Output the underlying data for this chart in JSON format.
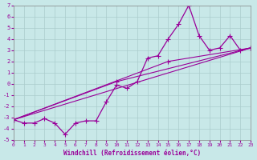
{
  "xlabel": "Windchill (Refroidissement éolien,°C)",
  "ylabel": "",
  "xlim": [
    0,
    23
  ],
  "ylim": [
    -5,
    7
  ],
  "yticks": [
    -5,
    -4,
    -3,
    -2,
    -1,
    0,
    1,
    2,
    3,
    4,
    5,
    6,
    7
  ],
  "xticks": [
    0,
    1,
    2,
    3,
    4,
    5,
    6,
    7,
    8,
    9,
    10,
    11,
    12,
    13,
    14,
    15,
    16,
    17,
    18,
    19,
    20,
    21,
    22,
    23
  ],
  "bg_color": "#c8e8e8",
  "line_color": "#990099",
  "grid_color": "#aacccc",
  "data_line": [
    [
      0,
      -3.2
    ],
    [
      1,
      -3.5
    ],
    [
      2,
      -3.5
    ],
    [
      3,
      -3.1
    ],
    [
      4,
      -3.5
    ],
    [
      5,
      -4.5
    ],
    [
      6,
      -3.5
    ],
    [
      7,
      -3.3
    ],
    [
      8,
      -3.3
    ],
    [
      9,
      -1.6
    ],
    [
      10,
      -0.1
    ],
    [
      11,
      -0.4
    ],
    [
      12,
      0.2
    ],
    [
      13,
      2.3
    ],
    [
      14,
      2.5
    ],
    [
      15,
      4.0
    ],
    [
      16,
      5.3
    ],
    [
      17,
      7.0
    ],
    [
      18,
      4.3
    ],
    [
      19,
      3.0
    ],
    [
      20,
      3.2
    ],
    [
      21,
      4.3
    ],
    [
      22,
      3.0
    ],
    [
      23,
      3.2
    ]
  ],
  "ref_line1": [
    [
      0,
      -3.2
    ],
    [
      23,
      3.2
    ]
  ],
  "ref_line2": [
    [
      0,
      -3.2
    ],
    [
      10,
      0.2
    ],
    [
      23,
      3.2
    ]
  ],
  "ref_line3": [
    [
      0,
      -3.2
    ],
    [
      15,
      2.0
    ],
    [
      23,
      3.2
    ]
  ]
}
